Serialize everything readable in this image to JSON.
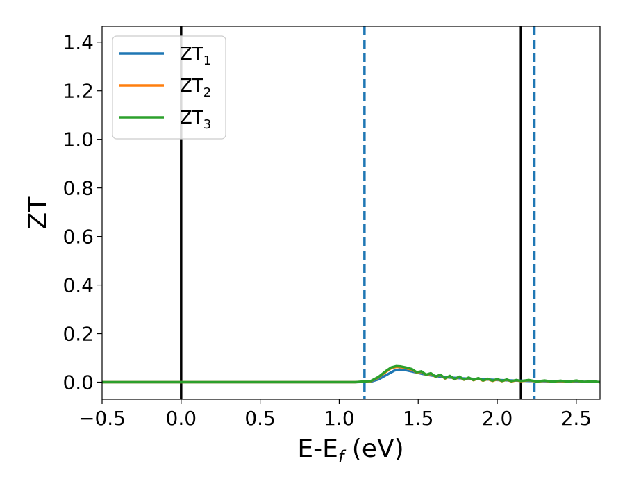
{
  "chart_data": {
    "type": "line",
    "xlabel": {
      "main": "E-E",
      "sub": "f",
      "suffix": " (eV)"
    },
    "ylabel": "ZT",
    "xlim": [
      -0.5,
      2.65
    ],
    "ylim": [
      -0.07,
      1.465
    ],
    "xticks": [
      -0.5,
      0.0,
      0.5,
      1.0,
      1.5,
      2.0,
      2.5
    ],
    "xtick_labels": [
      "−0.5",
      "0.0",
      "0.5",
      "1.0",
      "1.5",
      "2.0",
      "2.5"
    ],
    "yticks": [
      0.0,
      0.2,
      0.4,
      0.6,
      0.8,
      1.0,
      1.2,
      1.4
    ],
    "ytick_labels": [
      "0.0",
      "0.2",
      "0.4",
      "0.6",
      "0.8",
      "1.0",
      "1.2",
      "1.4"
    ],
    "grid": false,
    "legend_position": "upper-left",
    "vlines": [
      {
        "x": 0.0,
        "style": "solid",
        "color": "#000000"
      },
      {
        "x": 2.15,
        "style": "solid",
        "color": "#000000"
      },
      {
        "x": 1.16,
        "style": "dashed",
        "color": "#1f77b4"
      },
      {
        "x": 2.235,
        "style": "dashed",
        "color": "#1f77b4"
      }
    ],
    "series": [
      {
        "name": "ZT",
        "sub": "1",
        "color": "#1f77b4",
        "x": [
          -0.5,
          1.1,
          1.2,
          1.25,
          1.3,
          1.35,
          1.38,
          1.42,
          1.46,
          1.5,
          1.55,
          1.6,
          1.65,
          1.7,
          1.8,
          1.9,
          2.0,
          2.1,
          2.2,
          2.3,
          2.4,
          2.5,
          2.65
        ],
        "y": [
          0.0,
          0.0,
          0.002,
          0.012,
          0.03,
          0.048,
          0.052,
          0.05,
          0.044,
          0.038,
          0.031,
          0.026,
          0.022,
          0.019,
          0.015,
          0.012,
          0.009,
          0.007,
          0.005,
          0.004,
          0.003,
          0.002,
          0.001
        ]
      },
      {
        "name": "ZT",
        "sub": "2",
        "color": "#ff7f0e",
        "x": [
          -0.5,
          1.1,
          1.2,
          1.25,
          1.3,
          1.33,
          1.36,
          1.39,
          1.42,
          1.46,
          1.49,
          1.52,
          1.55,
          1.58,
          1.61,
          1.64,
          1.67,
          1.7,
          1.73,
          1.76,
          1.79,
          1.82,
          1.85,
          1.88,
          1.91,
          1.94,
          1.97,
          2.0,
          2.03,
          2.06,
          2.09,
          2.12,
          2.15,
          2.2,
          2.25,
          2.3,
          2.35,
          2.4,
          2.45,
          2.5,
          2.55,
          2.6,
          2.65
        ],
        "y": [
          0.0,
          0.0,
          0.004,
          0.02,
          0.045,
          0.058,
          0.063,
          0.062,
          0.058,
          0.052,
          0.04,
          0.043,
          0.03,
          0.035,
          0.022,
          0.03,
          0.015,
          0.025,
          0.012,
          0.022,
          0.01,
          0.018,
          0.008,
          0.016,
          0.006,
          0.013,
          0.005,
          0.012,
          0.004,
          0.01,
          0.003,
          0.008,
          0.004,
          0.008,
          0.002,
          0.006,
          0.001,
          0.005,
          0.001,
          0.006,
          0.001,
          0.003,
          0.0
        ]
      },
      {
        "name": "ZT",
        "sub": "3",
        "color": "#2ca02c",
        "x": [
          -0.5,
          1.1,
          1.2,
          1.25,
          1.3,
          1.33,
          1.36,
          1.39,
          1.42,
          1.46,
          1.49,
          1.52,
          1.55,
          1.58,
          1.61,
          1.64,
          1.67,
          1.7,
          1.73,
          1.76,
          1.79,
          1.82,
          1.85,
          1.88,
          1.91,
          1.94,
          1.97,
          2.0,
          2.03,
          2.06,
          2.09,
          2.12,
          2.15,
          2.2,
          2.25,
          2.3,
          2.35,
          2.4,
          2.45,
          2.5,
          2.55,
          2.6,
          2.65
        ],
        "y": [
          0.0,
          0.0,
          0.005,
          0.022,
          0.048,
          0.061,
          0.066,
          0.065,
          0.061,
          0.054,
          0.041,
          0.045,
          0.031,
          0.037,
          0.023,
          0.031,
          0.016,
          0.026,
          0.013,
          0.023,
          0.011,
          0.019,
          0.009,
          0.017,
          0.007,
          0.014,
          0.006,
          0.013,
          0.005,
          0.011,
          0.004,
          0.009,
          0.005,
          0.009,
          0.003,
          0.007,
          0.002,
          0.006,
          0.002,
          0.007,
          0.001,
          0.004,
          0.0
        ]
      }
    ]
  }
}
